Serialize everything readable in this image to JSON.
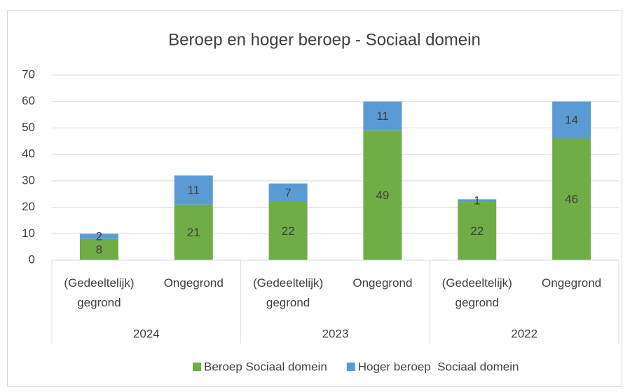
{
  "chart_data": {
    "type": "stacked_bar",
    "title": "Beroep en hoger beroep - Sociaal domein",
    "categories": [
      "(Gedeeltelijk) gegrond",
      "Ongegrond",
      "(Gedeeltelijk) gegrond",
      "Ongegrond",
      "(Gedeeltelijk) gegrond",
      "Ongegrond"
    ],
    "groups": [
      "2024",
      "2023",
      "2022"
    ],
    "series": [
      {
        "name": "Beroep Sociaal domein",
        "color": "#70ad47",
        "values": [
          8,
          21,
          22,
          49,
          22,
          46
        ]
      },
      {
        "name": "Hoger beroep  Sociaal domein",
        "color": "#5b9bd5",
        "values": [
          2,
          11,
          7,
          11,
          1,
          14
        ]
      }
    ],
    "ylim": [
      0,
      70
    ],
    "yticks": [
      0,
      10,
      20,
      30,
      40,
      50,
      60,
      70
    ],
    "grid": true,
    "legend": "bottom"
  }
}
